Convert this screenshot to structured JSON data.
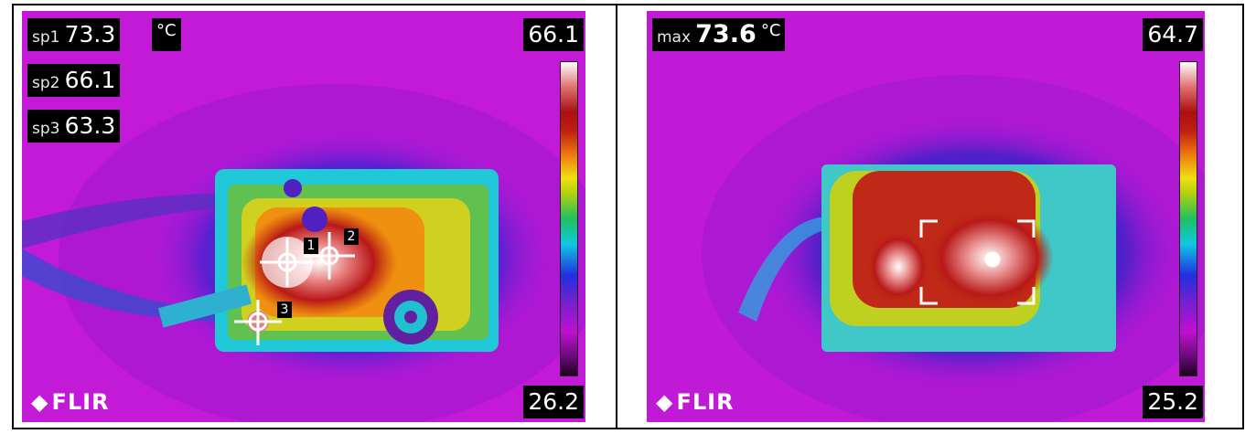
{
  "panels": [
    {
      "readouts": [
        {
          "label": "sp1",
          "value": "73.3"
        },
        {
          "label": "sp2",
          "value": "66.1"
        },
        {
          "label": "sp3",
          "value": "63.3"
        }
      ],
      "unit": "°C",
      "scale_max": "66.1",
      "scale_min": "26.2",
      "logo": "FLIR",
      "markers": [
        "1",
        "2",
        "3"
      ]
    },
    {
      "readouts": [
        {
          "label": "max",
          "value": "73.6"
        }
      ],
      "unit": "°C",
      "scale_max": "64.7",
      "scale_min": "25.2",
      "logo": "FLIR"
    }
  ]
}
